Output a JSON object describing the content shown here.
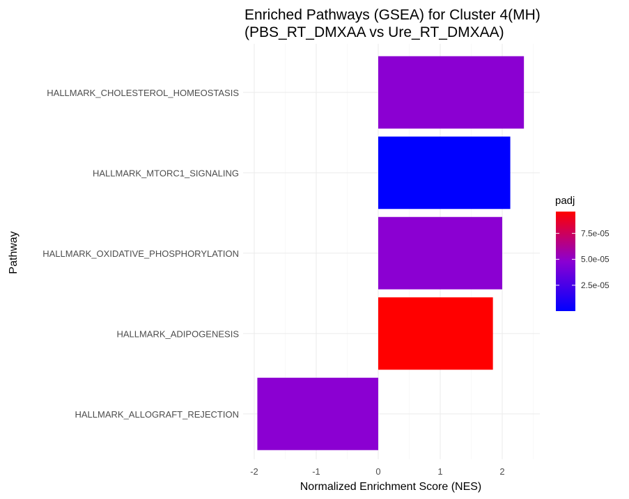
{
  "chart_data": {
    "type": "bar",
    "orientation": "horizontal",
    "title": [
      "Enriched Pathways (GSEA) for Cluster 4(MH)",
      "(PBS_RT_DMXAA vs Ure_RT_DMXAA)"
    ],
    "xlabel": "Normalized Enrichment Score (NES)",
    "ylabel": "Pathway",
    "xlim": [
      -2.1,
      2.55
    ],
    "x_ticks": [
      -2,
      -1,
      0,
      1,
      2
    ],
    "x_tick_labels": [
      "-2",
      "-1",
      "0",
      "1",
      "2"
    ],
    "grid": true,
    "categories": [
      "HALLMARK_CHOLESTEROL_HOMEOSTASIS",
      "HALLMARK_MTORC1_SIGNALING",
      "HALLMARK_OXIDATIVE_PHOSPHORYLATION",
      "HALLMARK_ADIPOGENESIS",
      "HALLMARK_ALLOGRAFT_REJECTION"
    ],
    "values": [
      2.35,
      2.13,
      2.0,
      1.85,
      -1.95
    ],
    "padj": [
      3e-05,
      1e-07,
      3e-05,
      9.6e-05,
      3e-05
    ],
    "bar_colors": [
      "#8b00d2",
      "#0000ff",
      "#8b00d2",
      "#ff0000",
      "#8b00d2"
    ],
    "legend": {
      "title": "padj",
      "placement": "right",
      "range": [
        1e-07,
        9.6e-05
      ],
      "ticks": [
        2.5e-05,
        5e-05,
        7.5e-05
      ],
      "tick_labels": [
        "2.5e-05",
        "5.0e-05",
        "7.5e-05"
      ],
      "low_color": "#0000ff",
      "high_color": "#ff0000"
    }
  }
}
